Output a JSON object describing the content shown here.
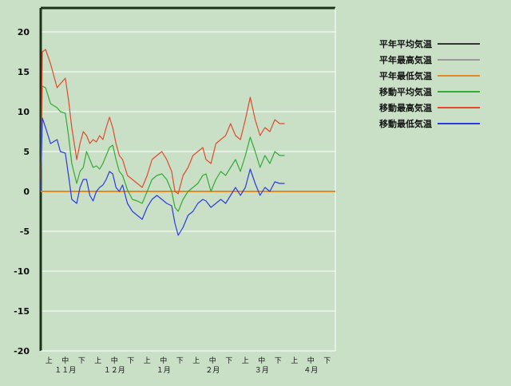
{
  "chart_data": {
    "type": "line",
    "title": "",
    "xlabel": "",
    "ylabel": "",
    "ylim": [
      -20,
      23
    ],
    "yticks": [
      -20,
      -15,
      -10,
      -5,
      0,
      5,
      10,
      15,
      20
    ],
    "xlim": [
      0,
      18
    ],
    "xticks": [
      {
        "pos": 0.5,
        "label": "上"
      },
      {
        "pos": 1.5,
        "label": "中"
      },
      {
        "pos": 2.5,
        "label": "下"
      },
      {
        "pos": 3.5,
        "label": "上"
      },
      {
        "pos": 4.5,
        "label": "中"
      },
      {
        "pos": 5.5,
        "label": "下"
      },
      {
        "pos": 6.5,
        "label": "上"
      },
      {
        "pos": 7.5,
        "label": "中"
      },
      {
        "pos": 8.5,
        "label": "下"
      },
      {
        "pos": 9.5,
        "label": "上"
      },
      {
        "pos": 10.5,
        "label": "中"
      },
      {
        "pos": 11.5,
        "label": "下"
      },
      {
        "pos": 12.5,
        "label": "上"
      },
      {
        "pos": 13.5,
        "label": "中"
      },
      {
        "pos": 14.5,
        "label": "下"
      },
      {
        "pos": 15.5,
        "label": "上"
      },
      {
        "pos": 16.5,
        "label": "中"
      },
      {
        "pos": 17.5,
        "label": "下"
      }
    ],
    "month_labels": [
      {
        "pos": 1.5,
        "label": "１１月"
      },
      {
        "pos": 4.5,
        "label": "１２月"
      },
      {
        "pos": 7.5,
        "label": "１月"
      },
      {
        "pos": 10.5,
        "label": "２月"
      },
      {
        "pos": 13.5,
        "label": "３月"
      },
      {
        "pos": 16.5,
        "label": "４月"
      }
    ],
    "legend_position": "top-right",
    "grid": true,
    "colors": {
      "background": "#c9e0c7",
      "grid": "#ffffff",
      "axis": "#1a331a"
    },
    "series": [
      {
        "name": "平年平均気温",
        "color": "#333333",
        "x": [],
        "y": []
      },
      {
        "name": "平年最高気温",
        "color": "#999999",
        "x": [],
        "y": []
      },
      {
        "name": "平年最低気温",
        "color": "#e08a2a",
        "x": [
          0.0,
          18.0
        ],
        "y": [
          0.0,
          0.0
        ]
      },
      {
        "name": "移動平均気温",
        "color": "#33aa33",
        "x": [
          0.0,
          0.1,
          0.3,
          0.6,
          1.0,
          1.2,
          1.5,
          1.7,
          1.9,
          2.2,
          2.4,
          2.6,
          2.8,
          3.0,
          3.2,
          3.4,
          3.6,
          3.8,
          4.0,
          4.2,
          4.4,
          4.6,
          4.8,
          5.0,
          5.3,
          5.6,
          5.9,
          6.2,
          6.5,
          6.8,
          7.1,
          7.4,
          7.7,
          8.0,
          8.2,
          8.4,
          8.7,
          9.0,
          9.3,
          9.6,
          9.9,
          10.1,
          10.4,
          10.7,
          11.0,
          11.3,
          11.6,
          11.9,
          12.2,
          12.5,
          12.8,
          13.1,
          13.4,
          13.7,
          14.0,
          14.3,
          14.6,
          14.9
        ],
        "y": [
          0.0,
          13.2,
          13.0,
          11.0,
          10.5,
          10.0,
          9.8,
          7.0,
          3.5,
          1.0,
          2.5,
          3.0,
          5.0,
          4.0,
          3.0,
          3.2,
          2.8,
          3.5,
          4.5,
          5.5,
          5.8,
          4.0,
          2.5,
          2.0,
          0.2,
          -1.0,
          -1.2,
          -1.5,
          0.0,
          1.5,
          2.0,
          2.2,
          1.5,
          0.0,
          -2.0,
          -2.5,
          -1.0,
          0.0,
          0.5,
          1.0,
          2.0,
          2.2,
          0.0,
          1.5,
          2.5,
          2.0,
          3.0,
          4.0,
          2.5,
          4.5,
          6.8,
          5.0,
          3.0,
          4.5,
          3.5,
          5.0,
          4.5,
          4.5
        ]
      },
      {
        "name": "移動最高気温",
        "color": "#e04a2a",
        "x": [
          0.0,
          0.1,
          0.3,
          0.6,
          1.0,
          1.2,
          1.5,
          1.7,
          1.9,
          2.2,
          2.4,
          2.6,
          2.8,
          3.0,
          3.2,
          3.4,
          3.6,
          3.8,
          4.0,
          4.2,
          4.4,
          4.6,
          4.8,
          5.0,
          5.3,
          5.6,
          5.9,
          6.2,
          6.5,
          6.8,
          7.1,
          7.4,
          7.7,
          8.0,
          8.2,
          8.4,
          8.7,
          9.0,
          9.3,
          9.6,
          9.9,
          10.1,
          10.4,
          10.7,
          11.0,
          11.3,
          11.6,
          11.9,
          12.2,
          12.5,
          12.8,
          13.1,
          13.4,
          13.7,
          14.0,
          14.3,
          14.6,
          14.9
        ],
        "y": [
          0.0,
          17.5,
          17.8,
          16.0,
          13.0,
          13.5,
          14.2,
          11.5,
          8.0,
          4.0,
          6.0,
          7.5,
          7.0,
          6.0,
          6.5,
          6.2,
          7.0,
          6.5,
          8.0,
          9.3,
          8.0,
          6.0,
          4.5,
          4.0,
          2.0,
          1.5,
          1.0,
          0.5,
          2.0,
          4.0,
          4.5,
          5.0,
          4.0,
          2.5,
          0.0,
          -0.3,
          2.0,
          3.0,
          4.5,
          5.0,
          5.5,
          4.0,
          3.5,
          6.0,
          6.5,
          7.0,
          8.5,
          7.0,
          6.5,
          9.0,
          11.8,
          9.0,
          7.0,
          8.0,
          7.5,
          9.0,
          8.5,
          8.5
        ]
      },
      {
        "name": "移動最低気温",
        "color": "#2a3ae0",
        "x": [
          0.0,
          0.1,
          0.3,
          0.6,
          1.0,
          1.2,
          1.5,
          1.7,
          1.9,
          2.2,
          2.4,
          2.6,
          2.8,
          3.0,
          3.2,
          3.4,
          3.6,
          3.8,
          4.0,
          4.2,
          4.4,
          4.6,
          4.8,
          5.0,
          5.3,
          5.6,
          5.9,
          6.2,
          6.5,
          6.8,
          7.1,
          7.4,
          7.7,
          8.0,
          8.2,
          8.4,
          8.7,
          9.0,
          9.3,
          9.6,
          9.9,
          10.1,
          10.4,
          10.7,
          11.0,
          11.3,
          11.6,
          11.9,
          12.2,
          12.5,
          12.8,
          13.1,
          13.4,
          13.7,
          14.0,
          14.3,
          14.6,
          14.9
        ],
        "y": [
          0.0,
          9.2,
          8.0,
          6.0,
          6.5,
          5.0,
          4.8,
          2.0,
          -1.0,
          -1.5,
          0.5,
          1.5,
          1.5,
          -0.5,
          -1.2,
          0.0,
          0.5,
          0.8,
          1.5,
          2.5,
          2.2,
          0.5,
          0.0,
          0.8,
          -1.5,
          -2.5,
          -3.0,
          -3.5,
          -2.0,
          -1.0,
          -0.5,
          -1.0,
          -1.5,
          -1.8,
          -4.0,
          -5.5,
          -4.5,
          -3.0,
          -2.5,
          -1.5,
          -1.0,
          -1.2,
          -2.0,
          -1.5,
          -1.0,
          -1.5,
          -0.5,
          0.5,
          -0.5,
          0.5,
          2.8,
          1.0,
          -0.5,
          0.5,
          0.0,
          1.2,
          1.0,
          1.0
        ]
      }
    ]
  }
}
